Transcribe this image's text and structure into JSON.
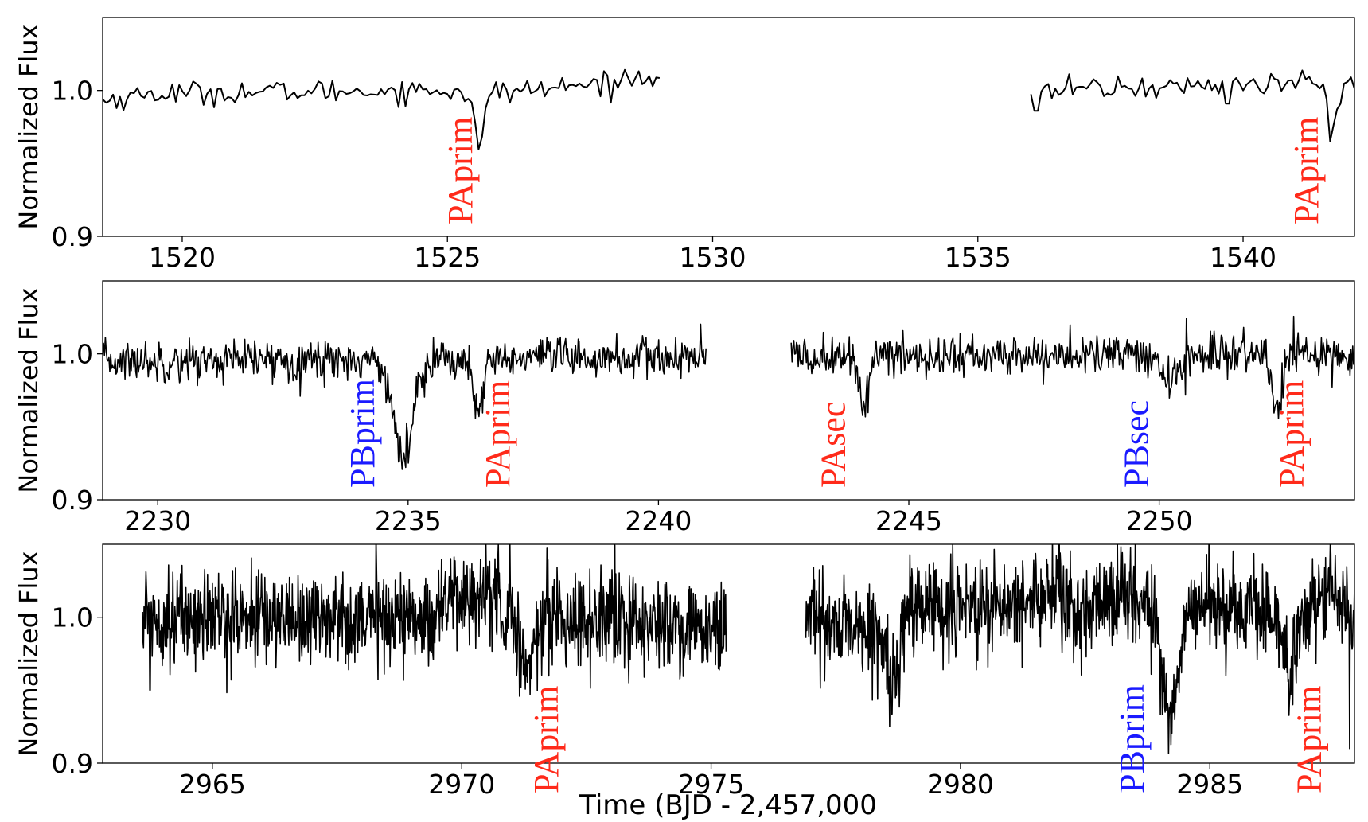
{
  "colors": {
    "line": "#000000",
    "red_label": "#ff2a1a",
    "blue_label": "#1a1aff",
    "frame": "#000000",
    "background": "#ffffff"
  },
  "figure": {
    "xlabel": "Time (BJD - 2,457,000"
  },
  "chart_data": [
    {
      "type": "line",
      "ylabel": "Normalized Flux",
      "xlim": [
        1518.5,
        1542.1
      ],
      "ylim": [
        0.9,
        1.05
      ],
      "xticks": [
        "1520",
        "1525",
        "1530",
        "1535",
        "1540"
      ],
      "yticks": [
        "0.9",
        "1.0"
      ],
      "series": [
        {
          "segments": [
            [
              1518.5,
              1529.0
            ],
            [
              1536.0,
              1542.1
            ]
          ],
          "noise": 0.004,
          "baseline": [
            [
              1518.5,
              0.993
            ],
            [
              1519.5,
              0.998
            ],
            [
              1524.0,
              1.0
            ],
            [
              1526.5,
              1.0
            ],
            [
              1528.0,
              1.005
            ],
            [
              1529.0,
              1.012
            ],
            [
              1536.0,
              1.0
            ],
            [
              1542.1,
              1.006
            ]
          ],
          "dips": [
            {
              "t": 1525.6,
              "depth": 0.04,
              "width": 0.09
            },
            {
              "t": 1541.7,
              "depth": 0.035,
              "width": 0.09
            }
          ],
          "glitches": [
            {
              "t": 1536.1,
              "v": 0.986
            },
            {
              "t": 1539.7,
              "v": 0.991
            }
          ]
        }
      ],
      "annotations": [
        {
          "text": "PAprim",
          "x": 1525.25,
          "color": "red"
        },
        {
          "text": "PAprim",
          "x": 1541.2,
          "color": "red"
        }
      ]
    },
    {
      "type": "line",
      "ylabel": "Normalized Flux",
      "xlim": [
        2228.9,
        2253.9
      ],
      "ylim": [
        0.9,
        1.05
      ],
      "xticks": [
        "2230",
        "2235",
        "2240",
        "2245",
        "2250"
      ],
      "yticks": [
        "0.9",
        "1.0"
      ],
      "series": [
        {
          "segments": [
            [
              2228.9,
              2240.95
            ],
            [
              2242.65,
              2253.9
            ]
          ],
          "noise": 0.007,
          "baseline": [
            [
              2228.9,
              0.995
            ],
            [
              2253.9,
              1.0
            ]
          ],
          "dips": [
            {
              "t": 2234.9,
              "depth": 0.07,
              "width": 0.18
            },
            {
              "t": 2236.4,
              "depth": 0.04,
              "width": 0.1
            },
            {
              "t": 2244.1,
              "depth": 0.03,
              "width": 0.1
            },
            {
              "t": 2250.2,
              "depth": 0.02,
              "width": 0.15
            },
            {
              "t": 2252.35,
              "depth": 0.04,
              "width": 0.1
            }
          ],
          "glitches": []
        }
      ],
      "annotations": [
        {
          "text": "PBprim",
          "x": 2234.1,
          "color": "blue"
        },
        {
          "text": "PAprim",
          "x": 2236.8,
          "color": "red"
        },
        {
          "text": "PAsec",
          "x": 2243.5,
          "color": "red"
        },
        {
          "text": "PBsec",
          "x": 2249.55,
          "color": "blue"
        },
        {
          "text": "PAprim",
          "x": 2252.65,
          "color": "red"
        }
      ]
    },
    {
      "type": "line",
      "ylabel": "Normalized Flux",
      "xlim": [
        2962.8,
        2987.9
      ],
      "ylim": [
        0.9,
        1.05
      ],
      "xticks": [
        "2965",
        "2970",
        "2975",
        "2980",
        "2985"
      ],
      "yticks": [
        "0.9",
        "1.0"
      ],
      "series": [
        {
          "segments": [
            [
              2963.6,
              2975.3
            ],
            [
              2976.9,
              2987.9
            ]
          ],
          "noise": 0.016,
          "baseline": [
            [
              2963.6,
              1.0
            ],
            [
              2969.4,
              1.0
            ],
            [
              2969.7,
              1.012
            ],
            [
              2970.6,
              1.015
            ],
            [
              2971.0,
              1.003
            ],
            [
              2975.3,
              0.99
            ],
            [
              2976.9,
              0.998
            ],
            [
              2978.5,
              0.99
            ],
            [
              2979.0,
              1.005
            ],
            [
              2981.0,
              1.008
            ],
            [
              2982.0,
              1.018
            ],
            [
              2982.4,
              1.0
            ],
            [
              2983.0,
              1.015
            ],
            [
              2987.0,
              1.0
            ],
            [
              2987.5,
              1.02
            ],
            [
              2987.9,
              1.0
            ]
          ],
          "dips": [
            {
              "t": 2971.3,
              "depth": 0.04,
              "width": 0.12
            },
            {
              "t": 2978.65,
              "depth": 0.05,
              "width": 0.12
            },
            {
              "t": 2984.2,
              "depth": 0.08,
              "width": 0.18
            },
            {
              "t": 2986.6,
              "depth": 0.04,
              "width": 0.12
            }
          ],
          "glitches": [
            {
              "t": 2963.75,
              "v": 0.95
            },
            {
              "t": 2987.8,
              "v": 0.91
            }
          ]
        }
      ],
      "annotations": [
        {
          "text": "PAprim",
          "x": 2971.7,
          "color": "red"
        },
        {
          "text": "PBprim",
          "x": 2983.45,
          "color": "blue"
        },
        {
          "text": "PAprim",
          "x": 2987.0,
          "color": "red"
        }
      ]
    }
  ]
}
